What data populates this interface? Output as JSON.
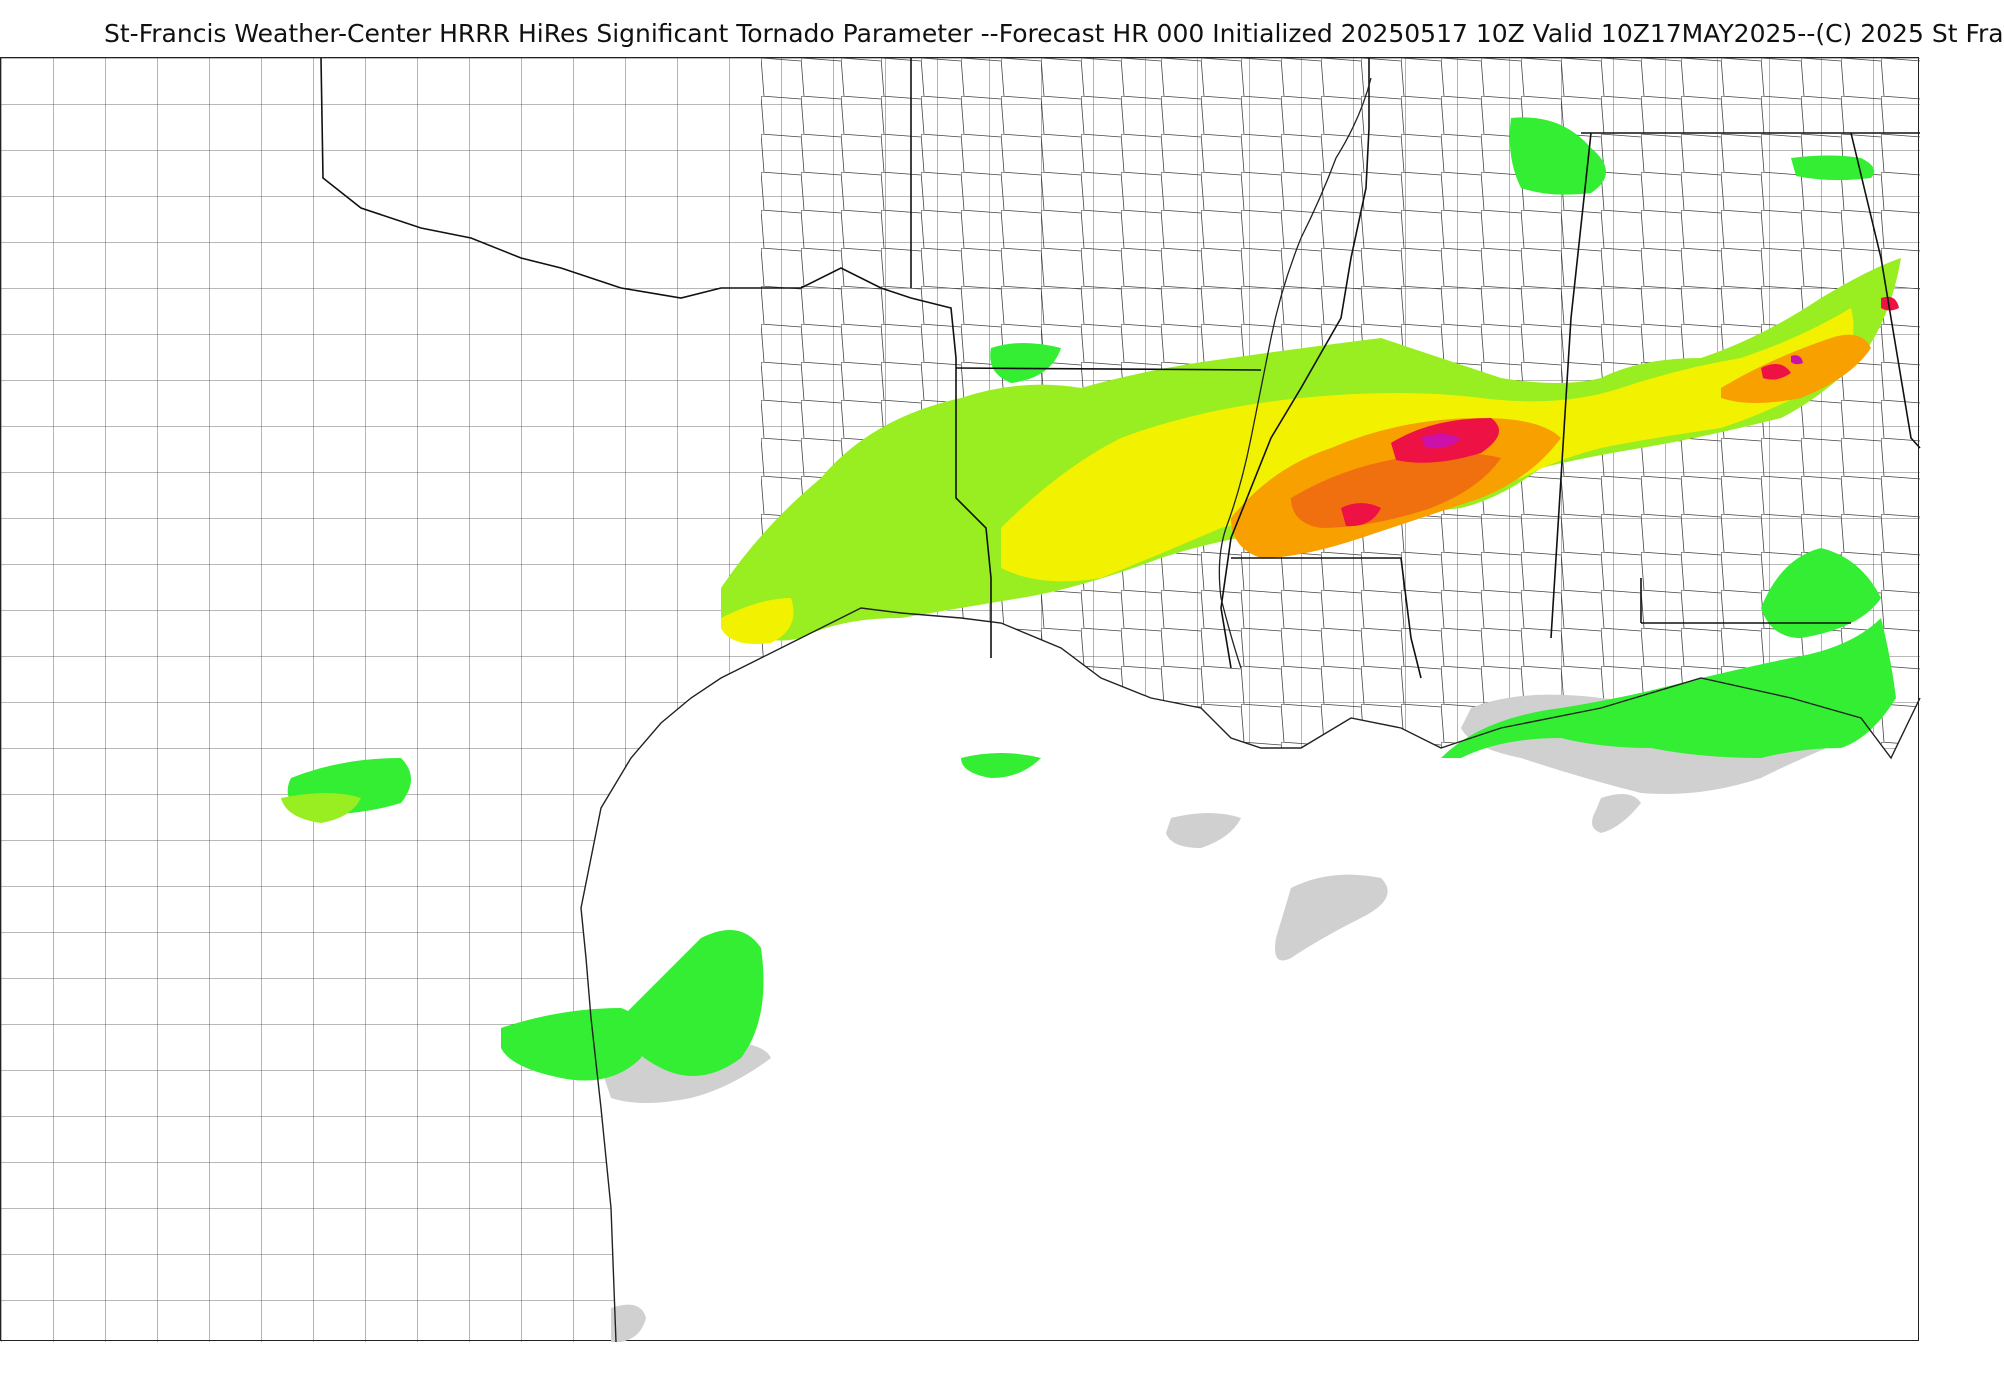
{
  "header": {
    "title": "St-Francis Weather-Center HRRR HiRes Significant Tornado Parameter --Forecast HR 000 Initialized 20250517 10Z Valid 10Z17MAY2025--(C) 2025 St Fra"
  },
  "map": {
    "product": "Significant Tornado Parameter",
    "colors": {
      "level_gray": "#d0d0d0",
      "level_green_bright": "#33ee33",
      "level_green_lime": "#99ee22",
      "level_yellow": "#f2f200",
      "level_orange": "#f7a000",
      "level_orange_dark": "#f07010",
      "level_red": "#ee1144",
      "level_magenta": "#cc11aa",
      "county_line": "#444444",
      "state_line": "#111111"
    }
  }
}
